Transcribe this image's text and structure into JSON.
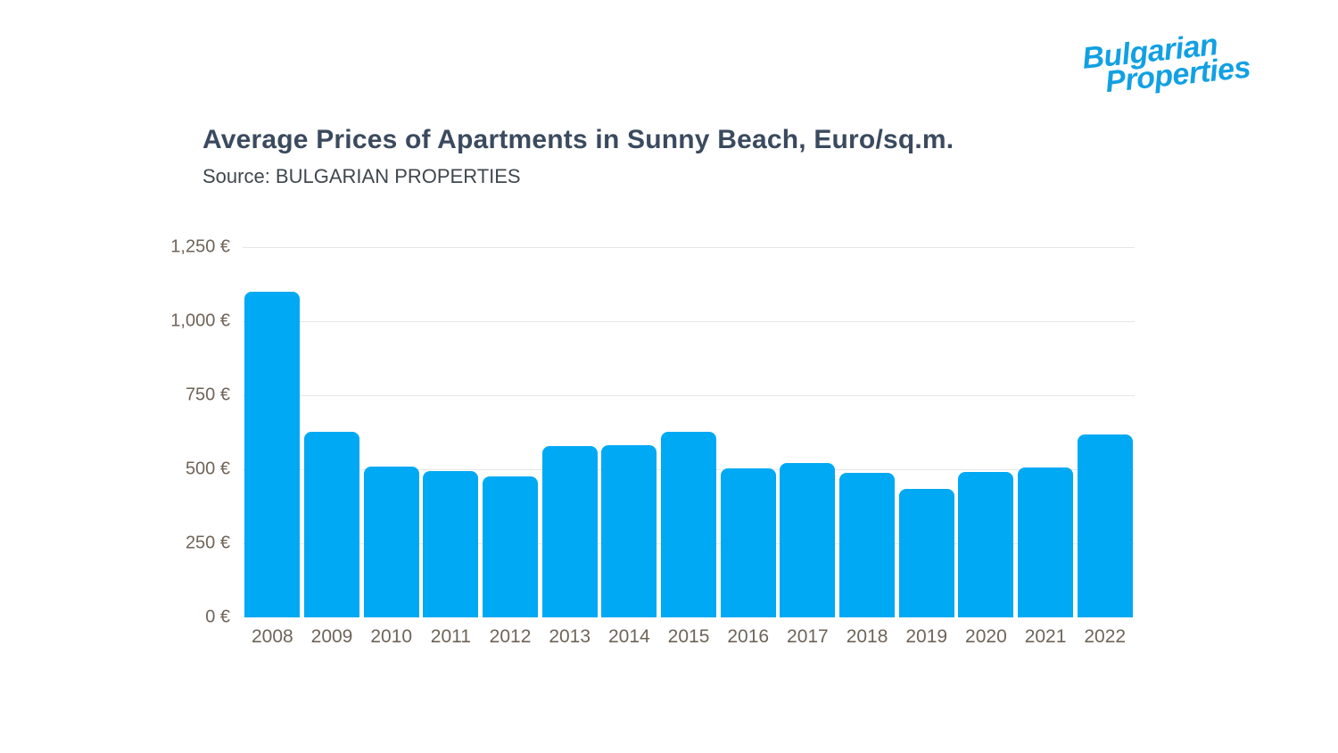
{
  "logo": {
    "line1": "Bulgarian",
    "line2": "Properties",
    "color": "#12a0e3"
  },
  "header": {
    "title": "Average Prices of Apartments in Sunny Beach, Euro/sq.m.",
    "subtitle": "Source: BULGARIAN PROPERTIES"
  },
  "chart_data": {
    "type": "bar",
    "title": "Average Prices of Apartments in Sunny Beach, Euro/sq.m.",
    "source": "Source: BULGARIAN PROPERTIES",
    "categories": [
      "2008",
      "2009",
      "2010",
      "2011",
      "2012",
      "2013",
      "2014",
      "2015",
      "2016",
      "2017",
      "2018",
      "2019",
      "2020",
      "2021",
      "2022"
    ],
    "values": [
      1100,
      627,
      508,
      495,
      477,
      578,
      581,
      628,
      504,
      520,
      489,
      434,
      490,
      506,
      618
    ],
    "unit": "EUR per sq.m.",
    "xlabel": "",
    "ylabel": "",
    "ylim": [
      0,
      1250
    ],
    "yticks": [
      {
        "value": 0,
        "label": "0 €"
      },
      {
        "value": 250,
        "label": "250 €"
      },
      {
        "value": 500,
        "label": "500 €"
      },
      {
        "value": 750,
        "label": "750 €"
      },
      {
        "value": 1000,
        "label": "1,000 €"
      },
      {
        "value": 1250,
        "label": "1,250 €"
      }
    ],
    "grid": "horizontal",
    "legend": "none",
    "bar_color": "#00a9f4",
    "gridline_color": "#e6e6e6",
    "axis_label_color": "#6e6459"
  }
}
